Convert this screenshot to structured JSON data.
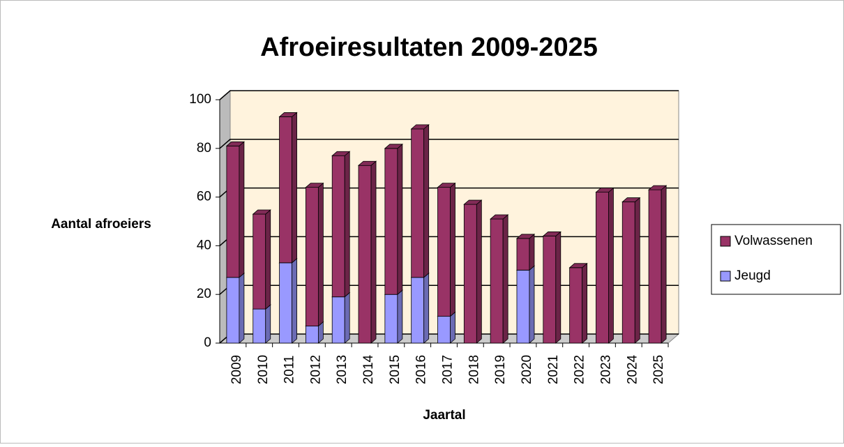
{
  "chart_data": {
    "type": "bar3d-stacked",
    "title": "Afroeiresultaten 2009-2025",
    "x_label": "Jaartal",
    "y_label": "Aantal afroeiers",
    "categories": [
      "2009",
      "2010",
      "2011",
      "2012",
      "2013",
      "2014",
      "2015",
      "2016",
      "2017",
      "2018",
      "2019",
      "2020",
      "2021",
      "2022",
      "2023",
      "2024",
      "2025"
    ],
    "series": [
      {
        "name": "Jeugd",
        "color": "#9999ff",
        "values": [
          27,
          14,
          33,
          7,
          19,
          0,
          20,
          27,
          11,
          0,
          0,
          30,
          0,
          0,
          0,
          0,
          0
        ]
      },
      {
        "name": "Volwassenen",
        "color": "#993366",
        "values": [
          54,
          39,
          60,
          57,
          58,
          73,
          60,
          61,
          53,
          57,
          51,
          13,
          44,
          31,
          62,
          58,
          63
        ]
      }
    ],
    "ylim": [
      0,
      100
    ],
    "yticks": [
      0,
      20,
      40,
      60,
      80,
      100
    ],
    "grid": true,
    "legend": "right"
  }
}
